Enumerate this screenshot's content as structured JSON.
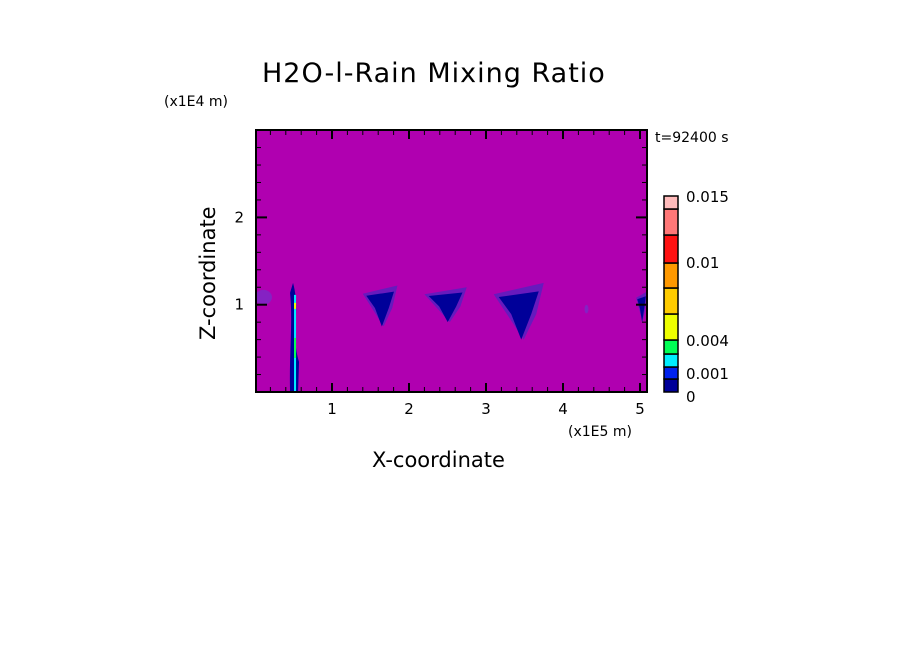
{
  "chart_data": {
    "type": "heatmap",
    "title": "H2O-l-Rain Mixing Ratio",
    "xlabel": "X-coordinate",
    "ylabel": "Z-coordinate",
    "x_unit": "(x1E5 m)",
    "y_unit": "(x1E4 m)",
    "time_label": "t=92400 s",
    "xlim": [
      0,
      5.09
    ],
    "ylim": [
      0,
      3.0
    ],
    "x_ticks": [
      "1",
      "2",
      "3",
      "4",
      "5"
    ],
    "y_ticks": [
      "1",
      "2"
    ],
    "background_color": "#b000b0",
    "colorbar": {
      "range": [
        0,
        0.015
      ],
      "tick_labels": [
        "0",
        "0.001",
        "0.004",
        "0.01",
        "0.015"
      ],
      "colors": [
        "#000099",
        "#0022ee",
        "#00eeff",
        "#00ff55",
        "#eeff00",
        "#ffcc00",
        "#ff9900",
        "#ff1111",
        "#ff7777",
        "#ffbbbb"
      ]
    },
    "features": [
      {
        "x": [
          0.0,
          0.22
        ],
        "z": [
          1.0,
          1.17
        ],
        "level": "trace"
      },
      {
        "x": [
          0.45,
          0.6
        ],
        "z": [
          0.0,
          1.25
        ],
        "level": "0.001-0.004",
        "core_x": 0.52
      },
      {
        "x": [
          1.4,
          1.85
        ],
        "z": [
          0.75,
          1.22
        ],
        "level": "0-0.001"
      },
      {
        "x": [
          2.2,
          2.75
        ],
        "z": [
          0.8,
          1.2
        ],
        "level": "0-0.001"
      },
      {
        "x": [
          3.1,
          3.75
        ],
        "z": [
          0.6,
          1.25
        ],
        "level": "0-0.001"
      },
      {
        "x": [
          4.28,
          4.33
        ],
        "z": [
          0.9,
          1.0
        ],
        "level": "trace"
      },
      {
        "x": [
          4.95,
          5.09
        ],
        "z": [
          0.8,
          1.15
        ],
        "level": "0-0.001"
      }
    ]
  }
}
